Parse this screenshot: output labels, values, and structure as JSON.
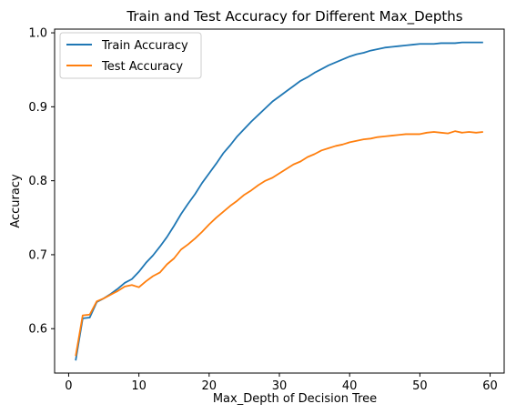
{
  "chart_data": {
    "type": "line",
    "title": "Train and Test Accuracy for Different Max_Depths",
    "xlabel": "Max_Depth of Decision Tree",
    "ylabel": "Accuracy",
    "xlim": [
      -2,
      62
    ],
    "ylim": [
      0.54,
      1.005
    ],
    "xticks": [
      0,
      10,
      20,
      30,
      40,
      50,
      60
    ],
    "yticks": [
      0.6,
      0.7,
      0.8,
      0.9,
      1.0
    ],
    "ytick_labels": [
      "0.6",
      "0.7",
      "0.8",
      "0.9",
      "1.0"
    ],
    "grid": false,
    "legend_position": "top-left",
    "x": [
      1,
      2,
      3,
      4,
      5,
      6,
      7,
      8,
      9,
      10,
      11,
      12,
      13,
      14,
      15,
      16,
      17,
      18,
      19,
      20,
      21,
      22,
      23,
      24,
      25,
      26,
      27,
      28,
      29,
      30,
      31,
      32,
      33,
      34,
      35,
      36,
      37,
      38,
      39,
      40,
      41,
      42,
      43,
      44,
      45,
      46,
      47,
      48,
      49,
      50,
      51,
      52,
      53,
      54,
      55,
      56,
      57,
      58,
      59
    ],
    "series": [
      {
        "name": "Train Accuracy",
        "color": "#1f77b4",
        "values": [
          0.557,
          0.614,
          0.615,
          0.636,
          0.641,
          0.647,
          0.654,
          0.662,
          0.667,
          0.677,
          0.689,
          0.699,
          0.711,
          0.724,
          0.739,
          0.755,
          0.769,
          0.782,
          0.797,
          0.81,
          0.823,
          0.837,
          0.848,
          0.86,
          0.87,
          0.88,
          0.889,
          0.898,
          0.907,
          0.914,
          0.921,
          0.928,
          0.935,
          0.94,
          0.946,
          0.951,
          0.956,
          0.96,
          0.964,
          0.968,
          0.971,
          0.973,
          0.976,
          0.978,
          0.98,
          0.981,
          0.982,
          0.983,
          0.984,
          0.985,
          0.985,
          0.985,
          0.986,
          0.986,
          0.986,
          0.987,
          0.987,
          0.987,
          0.987
        ]
      },
      {
        "name": "Test Accuracy",
        "color": "#ff7f0e",
        "values": [
          0.563,
          0.618,
          0.619,
          0.637,
          0.641,
          0.646,
          0.651,
          0.657,
          0.659,
          0.656,
          0.664,
          0.671,
          0.676,
          0.687,
          0.695,
          0.707,
          0.714,
          0.722,
          0.731,
          0.741,
          0.75,
          0.758,
          0.766,
          0.773,
          0.781,
          0.787,
          0.794,
          0.8,
          0.804,
          0.81,
          0.816,
          0.822,
          0.826,
          0.832,
          0.836,
          0.841,
          0.844,
          0.847,
          0.849,
          0.852,
          0.854,
          0.856,
          0.857,
          0.859,
          0.86,
          0.861,
          0.862,
          0.863,
          0.863,
          0.863,
          0.865,
          0.866,
          0.865,
          0.864,
          0.867,
          0.865,
          0.866,
          0.865,
          0.866
        ]
      }
    ]
  }
}
